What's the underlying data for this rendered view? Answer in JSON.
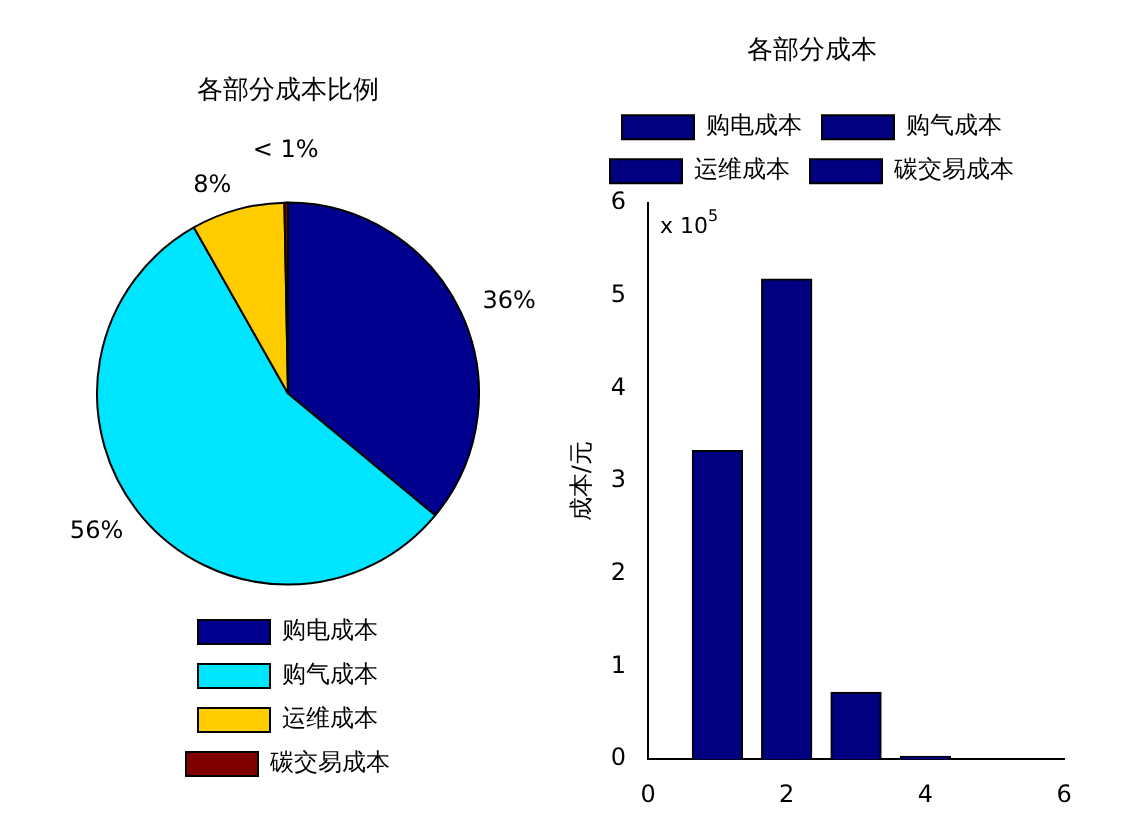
{
  "chart_data": [
    {
      "type": "pie",
      "title": "各部分成本比例",
      "categories": [
        "购电成本",
        "购气成本",
        "运维成本",
        "碳交易成本"
      ],
      "values": [
        36,
        55.8,
        7.9,
        0.3
      ],
      "colors": [
        "#00008f",
        "#00e5ff",
        "#ffcc00",
        "#800000"
      ],
      "value_labels": [
        "36%",
        "56%",
        "8%",
        "< 1%"
      ],
      "legend": "bottom"
    },
    {
      "type": "bar",
      "title": "各部分成本",
      "ylabel": "成本/元",
      "annotations": [
        "x 10$^{5}$"
      ],
      "xlim": [
        0,
        6
      ],
      "xticks": [
        0,
        2,
        4,
        6
      ],
      "ylim": [
        0,
        6
      ],
      "yticks": [
        0,
        1,
        2,
        3,
        4,
        5,
        6
      ],
      "grid": false,
      "legend": "top",
      "series": [
        {
          "name": "购电成本",
          "color": "#000080",
          "x": [
            1
          ],
          "values": [
            3.33
          ]
        },
        {
          "name": "购气成本",
          "color": "#000080",
          "x": [
            2
          ],
          "values": [
            5.18
          ]
        },
        {
          "name": "运维成本",
          "color": "#000080",
          "x": [
            3
          ],
          "values": [
            0.72
          ]
        },
        {
          "name": "碳交易成本",
          "color": "#000080",
          "x": [
            4
          ],
          "values": [
            0.03
          ]
        }
      ]
    }
  ]
}
